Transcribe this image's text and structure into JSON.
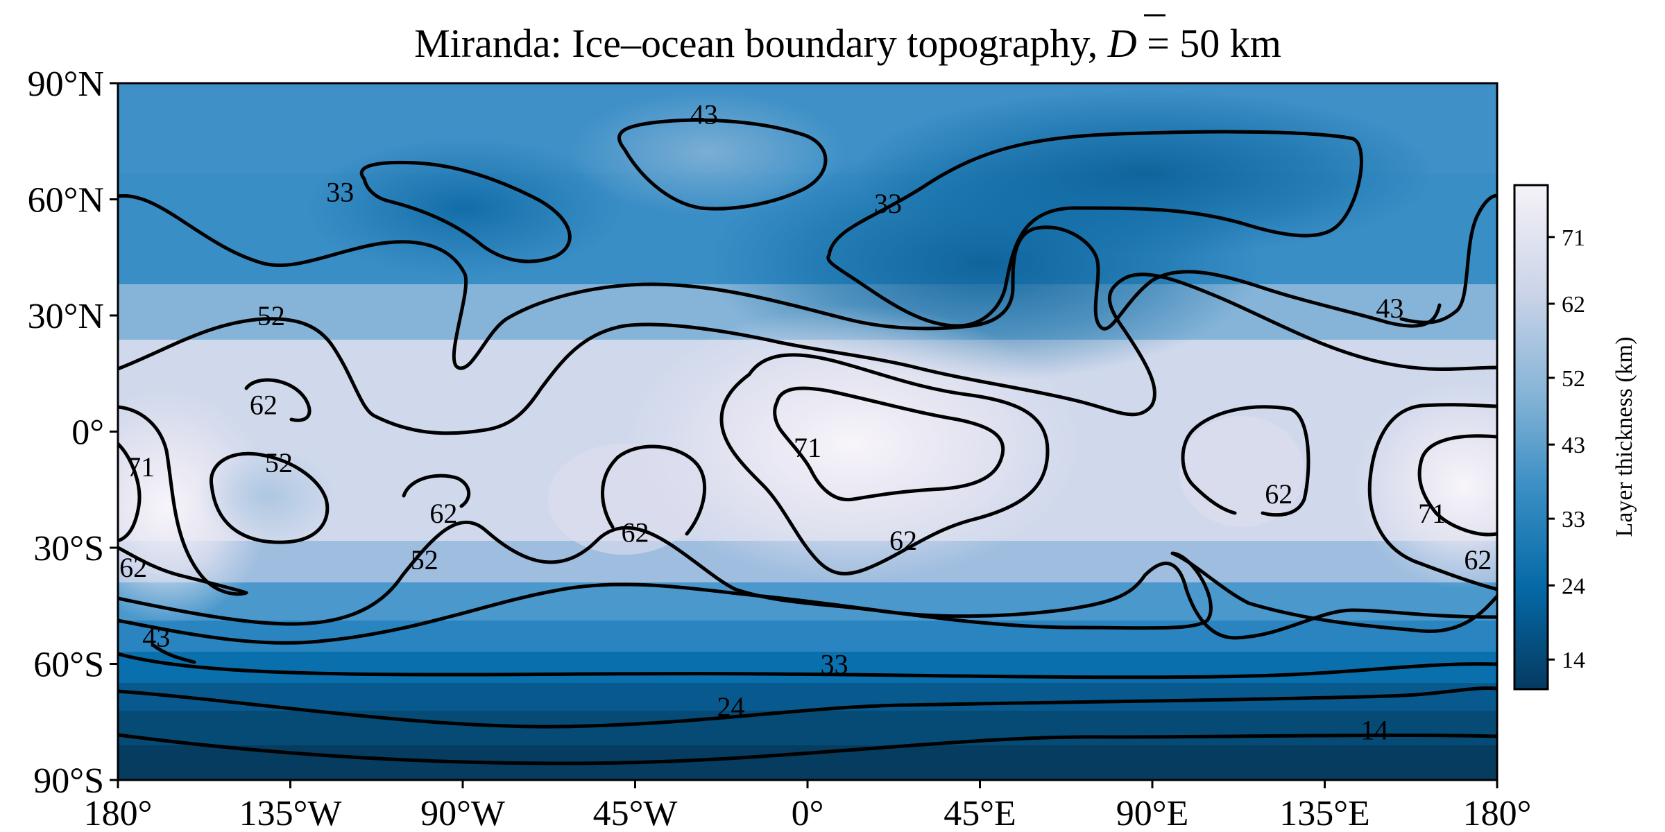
{
  "chart_data": {
    "type": "heatmap",
    "title_prefix": "Miranda: Ice–ocean boundary topography, ",
    "title_math": "D",
    "title_suffix": " = 50 km",
    "x_ticks": [
      "180°",
      "135°W",
      "90°W",
      "45°W",
      "0°",
      "45°E",
      "90°E",
      "135°E",
      "180°"
    ],
    "y_ticks": [
      "90°N",
      "60°N",
      "30°N",
      "0°",
      "30°S",
      "60°S",
      "90°S"
    ],
    "xlim": [
      -180,
      180
    ],
    "ylim": [
      -90,
      90
    ],
    "colorbar": {
      "label": "Layer thickness (km)",
      "ticks": [
        14,
        24,
        33,
        43,
        52,
        62,
        71
      ],
      "range": [
        10,
        78
      ],
      "colormap": [
        "#053a61",
        "#0569a6",
        "#3a8fc4",
        "#84b3d6",
        "#c9d3e8",
        "#f2eef6"
      ]
    },
    "contour_levels": [
      14,
      24,
      33,
      43,
      52,
      62,
      71
    ],
    "contour_labels": [
      {
        "text": "43",
        "lon": -27,
        "lat": 82
      },
      {
        "text": "33",
        "lon": -122,
        "lat": 62
      },
      {
        "text": "33",
        "lon": 21,
        "lat": 59
      },
      {
        "text": "52",
        "lon": -140,
        "lat": 30
      },
      {
        "text": "43",
        "lon": 152,
        "lat": 32
      },
      {
        "text": "62",
        "lon": -142,
        "lat": 7
      },
      {
        "text": "71",
        "lon": 0,
        "lat": -4
      },
      {
        "text": "71",
        "lon": -174,
        "lat": -9
      },
      {
        "text": "52",
        "lon": -138,
        "lat": -8
      },
      {
        "text": "62",
        "lon": -95,
        "lat": -21
      },
      {
        "text": "62",
        "lon": -45,
        "lat": -26
      },
      {
        "text": "62",
        "lon": 123,
        "lat": -16
      },
      {
        "text": "71",
        "lon": 163,
        "lat": -21
      },
      {
        "text": "62",
        "lon": 25,
        "lat": -28
      },
      {
        "text": "52",
        "lon": -100,
        "lat": -33
      },
      {
        "text": "62",
        "lon": -176,
        "lat": -35
      },
      {
        "text": "62",
        "lon": 175,
        "lat": -33
      },
      {
        "text": "43",
        "lon": -170,
        "lat": -53
      },
      {
        "text": "33",
        "lon": 7,
        "lat": -60
      },
      {
        "text": "24",
        "lon": -20,
        "lat": -71
      },
      {
        "text": "14",
        "lon": 148,
        "lat": -77
      }
    ]
  }
}
